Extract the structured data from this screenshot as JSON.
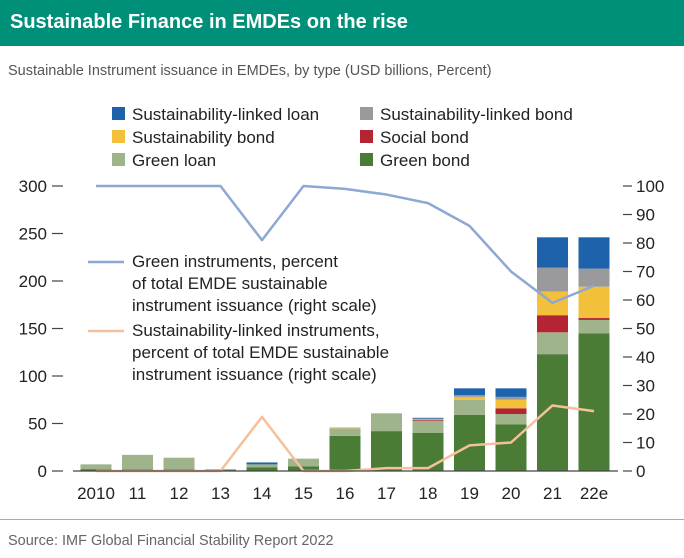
{
  "header": {
    "title": "Sustainable Finance in EMDEs on the rise",
    "subtitle": "Sustainable Instrument issuance in EMDEs, by type (USD billions, Percent)",
    "source": "Source: IMF Global Financial Stability Report 2022"
  },
  "colors": {
    "header_bg": "#00907a",
    "green_bond": "#4a7c36",
    "green_loan": "#9fb48a",
    "social_bond": "#b52433",
    "sustainability_bond": "#f2c03a",
    "sl_bond": "#9a9a9d",
    "sl_loan": "#1e62ac",
    "green_pct_line": "#8ea8d4",
    "sl_pct_line": "#f5c09a"
  },
  "chart_data": {
    "type": "bar",
    "stacked": true,
    "categories": [
      "2010",
      "11",
      "12",
      "13",
      "14",
      "15",
      "16",
      "17",
      "18",
      "19",
      "20",
      "21",
      "22e"
    ],
    "ylim_left": [
      0,
      300
    ],
    "ylim_right": [
      0,
      100
    ],
    "yticks_left": [
      "0",
      "50",
      "100",
      "150",
      "200",
      "250",
      "300"
    ],
    "yticks_right": [
      "0",
      "10",
      "20",
      "30",
      "40",
      "50",
      "60",
      "70",
      "80",
      "90",
      "100"
    ],
    "series": [
      {
        "name": "Green bond",
        "color_key": "green_bond",
        "values": [
          2,
          2,
          2,
          1,
          4,
          5,
          37,
          42,
          40,
          59,
          49,
          123,
          145
        ]
      },
      {
        "name": "Green loan",
        "color_key": "green_loan",
        "values": [
          5,
          15,
          12,
          1,
          3,
          8,
          8,
          18,
          13,
          16,
          11,
          23,
          14
        ]
      },
      {
        "name": "Social bond",
        "color_key": "social_bond",
        "values": [
          0,
          0,
          0,
          0,
          0,
          0,
          0,
          0,
          1,
          0,
          6,
          18,
          2
        ]
      },
      {
        "name": "Sustainability bond",
        "color_key": "sustainability_bond",
        "values": [
          0,
          0,
          0,
          0,
          0,
          0,
          1,
          1,
          1,
          3,
          9,
          25,
          33
        ]
      },
      {
        "name": "Sustainability-linked bond",
        "color_key": "sl_bond",
        "values": [
          0,
          0,
          0,
          0,
          0,
          0,
          0,
          0,
          0,
          2,
          3,
          25,
          19
        ]
      },
      {
        "name": "Sustainability-linked loan",
        "color_key": "sl_loan",
        "values": [
          0,
          0,
          0,
          0,
          2,
          0,
          0,
          0,
          1,
          7,
          9,
          32,
          33
        ]
      }
    ],
    "lines": [
      {
        "name": "Green instruments, percent of total EMDE sustainable instrument issuance (right scale)",
        "color_key": "green_pct_line",
        "values": [
          100,
          100,
          100,
          100,
          81,
          100,
          99,
          97,
          94,
          86,
          70,
          59,
          65
        ]
      },
      {
        "name": "Sustainability-linked instruments, percent of total EMDE sustainable instrument issuance (right scale)",
        "color_key": "sl_pct_line",
        "values": [
          0,
          0,
          0,
          0,
          19,
          0,
          0,
          1,
          1,
          9,
          10,
          23,
          21
        ]
      }
    ],
    "legend": [
      {
        "label": "Sustainability-linked loan",
        "color_key": "sl_loan"
      },
      {
        "label": "Sustainability-linked bond",
        "color_key": "sl_bond"
      },
      {
        "label": "Sustainability bond",
        "color_key": "sustainability_bond"
      },
      {
        "label": "Social bond",
        "color_key": "social_bond"
      },
      {
        "label": "Green loan",
        "color_key": "green_loan"
      },
      {
        "label": "Green bond",
        "color_key": "green_bond"
      }
    ],
    "line_labels": [
      {
        "color_key": "green_pct_line",
        "lines": [
          "Green instruments, percent",
          "of total EMDE sustainable",
          "instrument issuance (right scale)"
        ]
      },
      {
        "color_key": "sl_pct_line",
        "lines": [
          "Sustainability-linked instruments,",
          "percent of total EMDE sustainable",
          "instrument issuance (right scale)"
        ]
      }
    ]
  }
}
